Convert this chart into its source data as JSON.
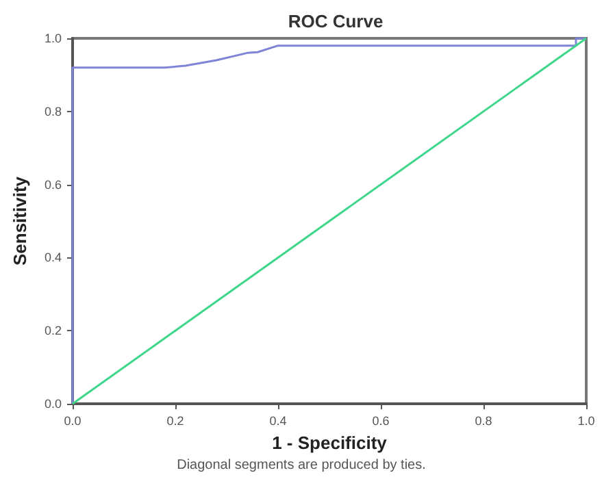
{
  "chart_data": {
    "type": "line",
    "title": "ROC Curve",
    "xlabel": "1 - Specificity",
    "ylabel": "Sensitivity",
    "annotations": [
      "Diagonal segments are produced by ties."
    ],
    "series": [
      {
        "color": "#7f84d8",
        "x": [
          0,
          0,
          0.18,
          0.22,
          0.28,
          0.34,
          0.36,
          0.4,
          0.98,
          0.98,
          1.0
        ],
        "values": [
          0,
          0.92,
          0.92,
          0.925,
          0.94,
          0.96,
          0.962,
          0.98,
          0.98,
          1.0,
          1.0
        ]
      },
      {
        "color": "#3ed68a",
        "x": [
          0,
          1
        ],
        "values": [
          0,
          1
        ]
      }
    ],
    "xlim": [
      0,
      1
    ],
    "ylim": [
      0,
      1
    ],
    "xticks": [
      {
        "value": 0,
        "label": "0.0"
      },
      0.2,
      0.4,
      0.6,
      0.8,
      {
        "value": 1,
        "label": "1.0"
      }
    ],
    "yticks": [
      {
        "value": 0,
        "label": "0.0"
      },
      0.2,
      0.4,
      0.6,
      0.8,
      {
        "value": 1,
        "label": "1.0"
      }
    ],
    "grid": false,
    "marker": "none",
    "line_style": "solid"
  }
}
